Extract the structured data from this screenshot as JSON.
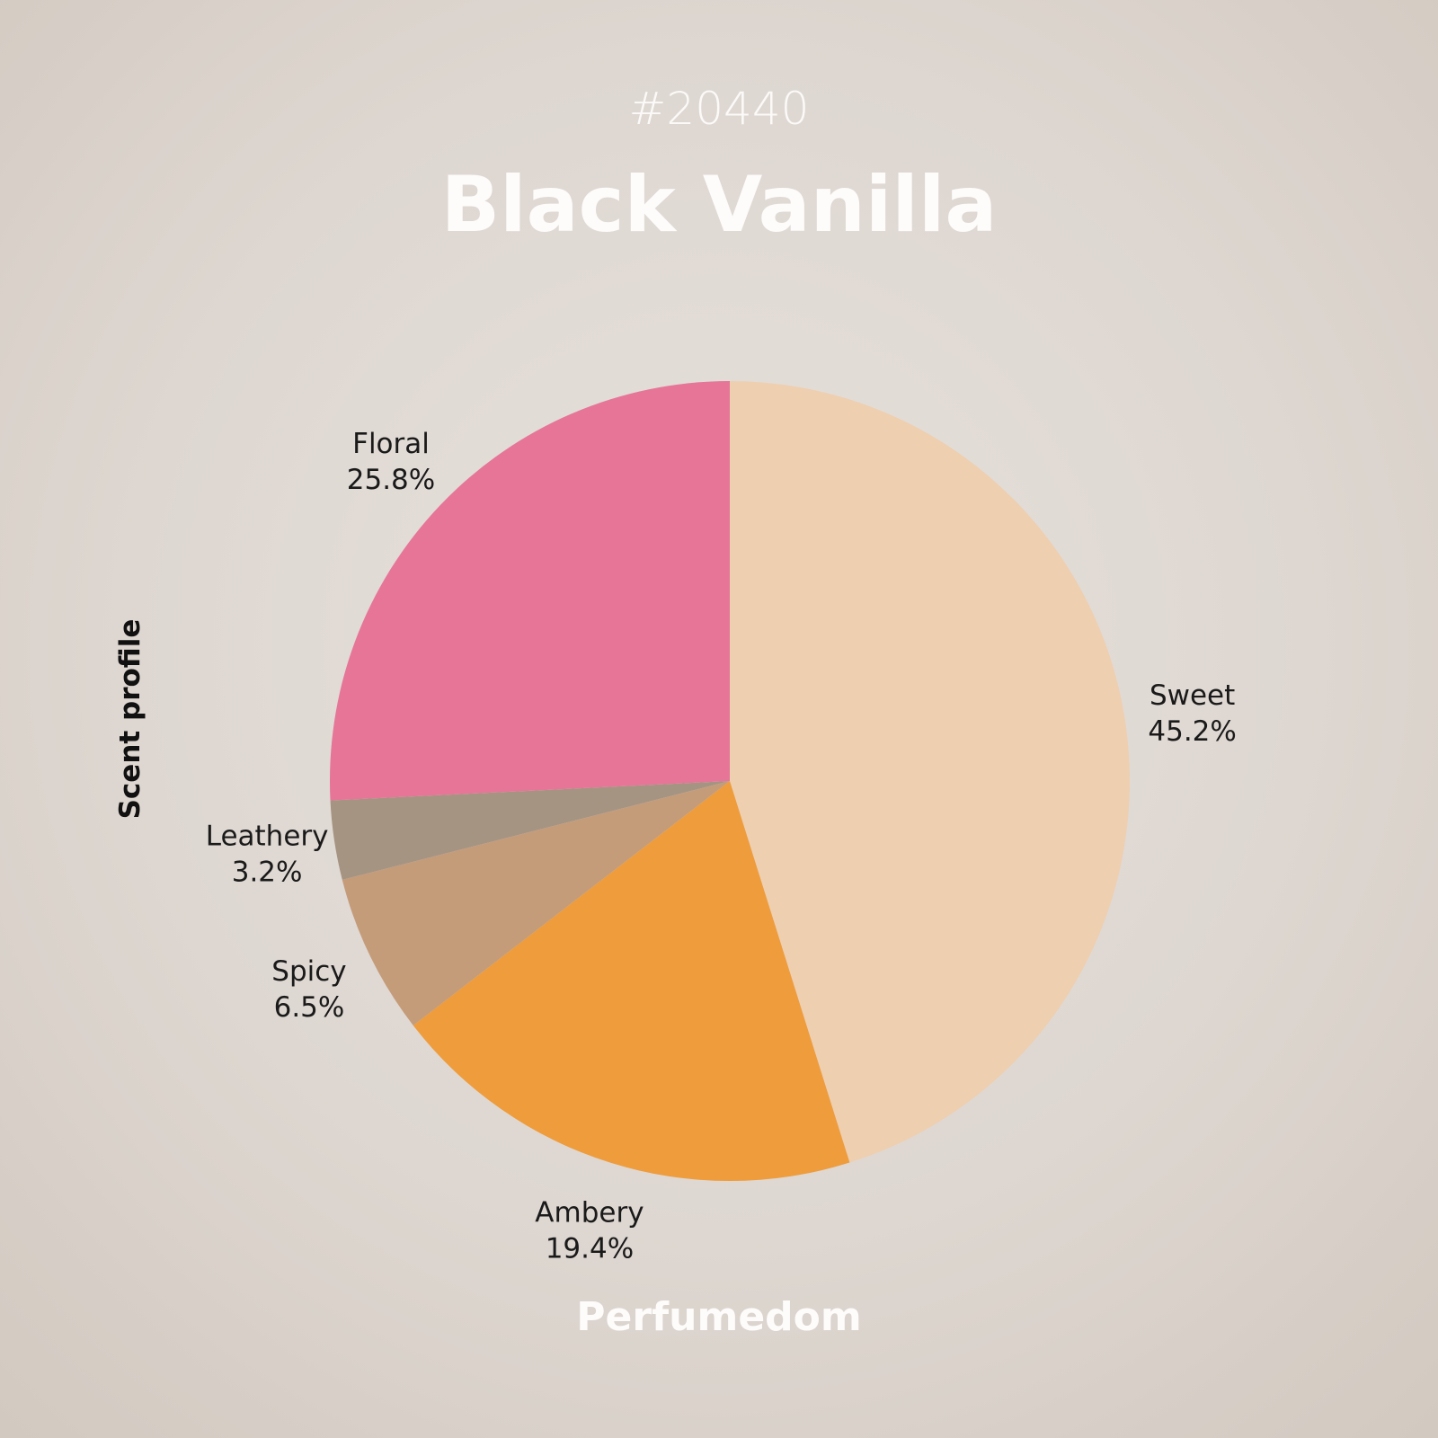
{
  "header": {
    "id": "#20440",
    "title": "Black Vanilla"
  },
  "footer": {
    "brand": "Perfumedom"
  },
  "chart_data": {
    "type": "pie",
    "ylabel": "Scent profile",
    "start": "top",
    "direction": "clockwise",
    "slices": [
      {
        "label": "Sweet",
        "value": 45.2,
        "display": "45.2%",
        "color": "#EECFB0"
      },
      {
        "label": "Ambery",
        "value": 19.4,
        "display": "19.4%",
        "color": "#EE9C3C"
      },
      {
        "label": "Spicy",
        "value": 6.5,
        "display": "6.5%",
        "color": "#C49C7A"
      },
      {
        "label": "Leathery",
        "value": 3.2,
        "display": "3.2%",
        "color": "#A69482"
      },
      {
        "label": "Floral",
        "value": 25.8,
        "display": "25.8%",
        "color": "#E67598"
      }
    ]
  }
}
